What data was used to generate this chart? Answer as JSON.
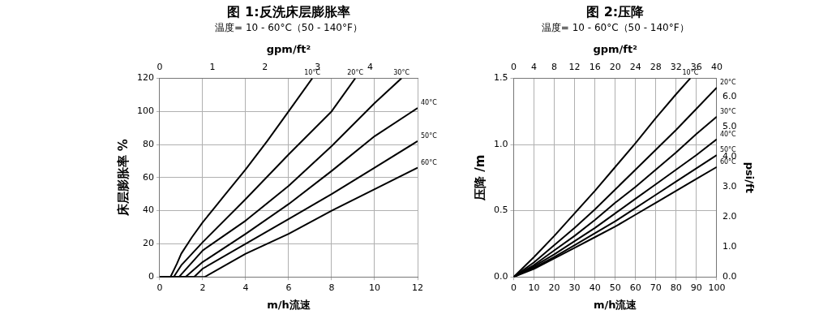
{
  "chart_data": [
    {
      "type": "line",
      "title": "图 1:反洗床层膨胀率",
      "subtitle": "温度= 10 - 60°C（50 - 140°F）",
      "xlabel": "m/h流速",
      "ylabel": "床层膨胀率 %",
      "x2label": "gpm/ft²",
      "xlim": [
        0,
        12
      ],
      "xticks": [
        0,
        2,
        4,
        6,
        8,
        10,
        12
      ],
      "ylim": [
        0,
        120
      ],
      "yticks": [
        0,
        20,
        40,
        60,
        80,
        100,
        120
      ],
      "x2lim": [
        0,
        4.9
      ],
      "x2ticks": [
        0,
        1,
        2,
        3,
        4
      ],
      "grid": true,
      "legend": false,
      "marker": "none",
      "line_style": "solid",
      "series": [
        {
          "name": "10°C",
          "color": "#000000",
          "x": [
            0,
            0.5,
            0.8,
            1,
            1.5,
            2,
            3,
            4,
            5,
            6,
            7.1
          ],
          "values": [
            0,
            0,
            8,
            14,
            24,
            33,
            49,
            65,
            82,
            100,
            120
          ]
        },
        {
          "name": "20°C",
          "color": "#000000",
          "x": [
            0,
            0.65,
            1,
            2,
            4,
            6,
            8,
            9.1
          ],
          "values": [
            0,
            0,
            7,
            21,
            47,
            74,
            100,
            120
          ]
        },
        {
          "name": "30°C",
          "color": "#000000",
          "x": [
            0,
            0.9,
            2,
            4,
            6,
            8,
            10,
            11.25
          ],
          "values": [
            0,
            0,
            16,
            34,
            55,
            79,
            105,
            120
          ]
        },
        {
          "name": "40°C",
          "color": "#000000",
          "x": [
            0,
            1.2,
            2,
            4,
            6,
            8,
            10,
            12
          ],
          "values": [
            0,
            0,
            9,
            26,
            44,
            64,
            85,
            102
          ]
        },
        {
          "name": "50°C",
          "color": "#000000",
          "x": [
            0,
            1.6,
            2,
            4,
            6,
            8,
            10,
            12
          ],
          "values": [
            0,
            0,
            5,
            20,
            35,
            50,
            66,
            82
          ]
        },
        {
          "name": "60°C",
          "color": "#000000",
          "x": [
            0,
            2.1,
            4,
            6,
            8,
            10,
            12
          ],
          "values": [
            0,
            0,
            14,
            26,
            40,
            53,
            66
          ]
        }
      ]
    },
    {
      "type": "line",
      "title": "图 2:压降",
      "subtitle": "温度= 10 - 60°C（50 - 140°F）",
      "xlabel": "m/h流速",
      "ylabel": "压降 /m",
      "y2label": "psi/ft",
      "x2label": "gpm/ft²",
      "xlim": [
        0,
        100
      ],
      "xticks": [
        0,
        10,
        20,
        30,
        40,
        50,
        60,
        70,
        80,
        90,
        100
      ],
      "ylim": [
        0,
        1.5
      ],
      "yticks": [
        {
          "value": 0,
          "label": "0.0"
        },
        {
          "value": 0.5,
          "label": "0.5"
        },
        {
          "value": 1,
          "label": "1.0"
        },
        {
          "value": 1.5,
          "label": "1.5"
        }
      ],
      "x2lim": [
        0,
        40
      ],
      "x2ticks": [
        0,
        4,
        8,
        12,
        16,
        20,
        24,
        28,
        32,
        36,
        40
      ],
      "y2lim": [
        0,
        6.6
      ],
      "y2ticks": [
        {
          "value": 0,
          "label": "0.0"
        },
        {
          "value": 1,
          "label": "1.0"
        },
        {
          "value": 2,
          "label": "2.0"
        },
        {
          "value": 3,
          "label": "3.0"
        },
        {
          "value": 4,
          "label": "4.0"
        },
        {
          "value": 5,
          "label": "5.0"
        },
        {
          "value": 6,
          "label": "6.0"
        }
      ],
      "grid": true,
      "legend": false,
      "marker": "none",
      "line_style": "solid",
      "series": [
        {
          "name": "10°C",
          "color": "#000000",
          "x": [
            0,
            10,
            20,
            30,
            40,
            50,
            60,
            70,
            80,
            87
          ],
          "values": [
            0,
            0.15,
            0.31,
            0.48,
            0.65,
            0.83,
            1.01,
            1.2,
            1.38,
            1.5
          ]
        },
        {
          "name": "20°C",
          "color": "#000000",
          "x": [
            0,
            10,
            20,
            30,
            40,
            50,
            60,
            70,
            80,
            90,
            100
          ],
          "values": [
            0,
            0.11,
            0.24,
            0.37,
            0.51,
            0.66,
            0.81,
            0.96,
            1.11,
            1.27,
            1.43
          ]
        },
        {
          "name": "30°C",
          "color": "#000000",
          "x": [
            0,
            10,
            20,
            30,
            40,
            50,
            60,
            70,
            80,
            90,
            100
          ],
          "values": [
            0,
            0.09,
            0.2,
            0.31,
            0.43,
            0.56,
            0.68,
            0.81,
            0.94,
            1.08,
            1.21
          ]
        },
        {
          "name": "40°C",
          "color": "#000000",
          "x": [
            0,
            10,
            20,
            30,
            40,
            50,
            60,
            70,
            80,
            90,
            100
          ],
          "values": [
            0,
            0.08,
            0.17,
            0.27,
            0.37,
            0.48,
            0.59,
            0.7,
            0.81,
            0.92,
            1.04
          ]
        },
        {
          "name": "50°C",
          "color": "#000000",
          "x": [
            0,
            10,
            20,
            30,
            40,
            50,
            60,
            70,
            80,
            90,
            100
          ],
          "values": [
            0,
            0.07,
            0.15,
            0.24,
            0.33,
            0.42,
            0.52,
            0.62,
            0.72,
            0.82,
            0.92
          ]
        },
        {
          "name": "60°C",
          "color": "#000000",
          "x": [
            0,
            10,
            20,
            30,
            40,
            50,
            60,
            70,
            80,
            90,
            100
          ],
          "values": [
            0,
            0.06,
            0.14,
            0.22,
            0.3,
            0.38,
            0.47,
            0.56,
            0.65,
            0.74,
            0.83
          ]
        }
      ]
    }
  ]
}
